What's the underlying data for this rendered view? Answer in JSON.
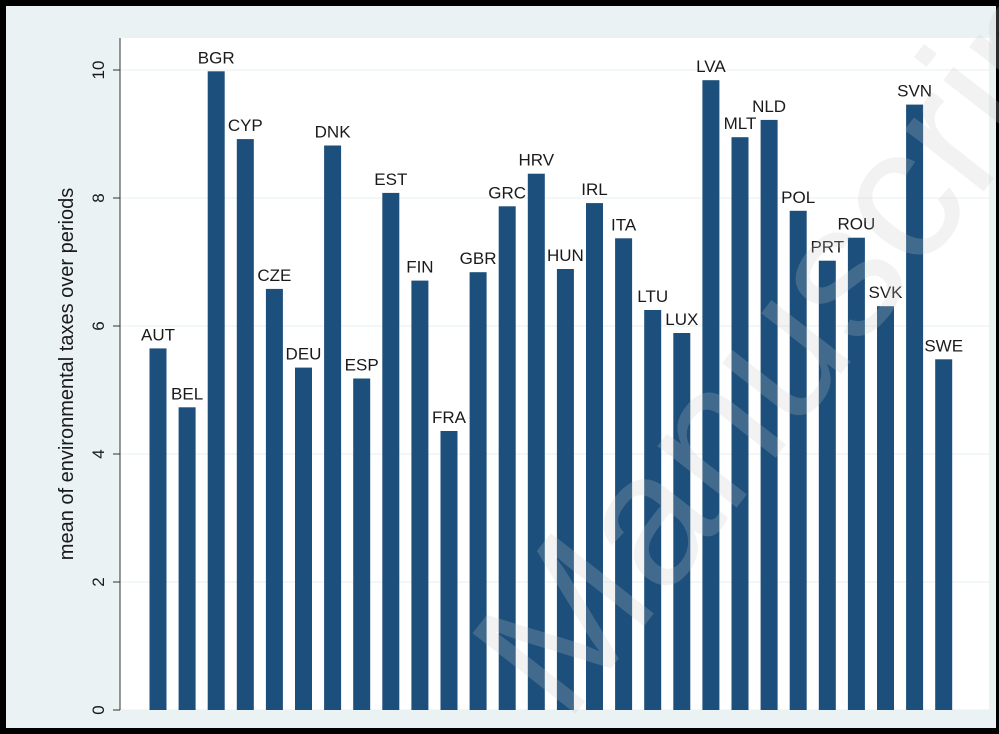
{
  "chart_data": {
    "type": "bar",
    "ylabel": "mean of environmental taxes over periods",
    "ylim": [
      0,
      10
    ],
    "yticks": [
      0,
      2,
      4,
      6,
      8,
      10
    ],
    "grid": true,
    "categories": [
      "AUT",
      "BEL",
      "BGR",
      "CYP",
      "CZE",
      "DEU",
      "DNK",
      "ESP",
      "EST",
      "FIN",
      "FRA",
      "GBR",
      "GRC",
      "HRV",
      "HUN",
      "IRL",
      "ITA",
      "LTU",
      "LUX",
      "LVA",
      "MLT",
      "NLD",
      "POL",
      "PRT",
      "ROU",
      "SVK",
      "SVN",
      "SWE"
    ],
    "values": [
      5.65,
      4.73,
      9.98,
      8.92,
      6.58,
      5.35,
      8.82,
      5.18,
      8.08,
      6.71,
      4.36,
      6.84,
      7.87,
      8.38,
      6.89,
      7.92,
      7.37,
      6.25,
      5.89,
      9.84,
      8.95,
      9.22,
      7.8,
      7.02,
      7.38,
      6.31,
      9.46,
      5.48
    ],
    "bar_color": "#1c4f7b"
  },
  "watermark": "Manuscript"
}
